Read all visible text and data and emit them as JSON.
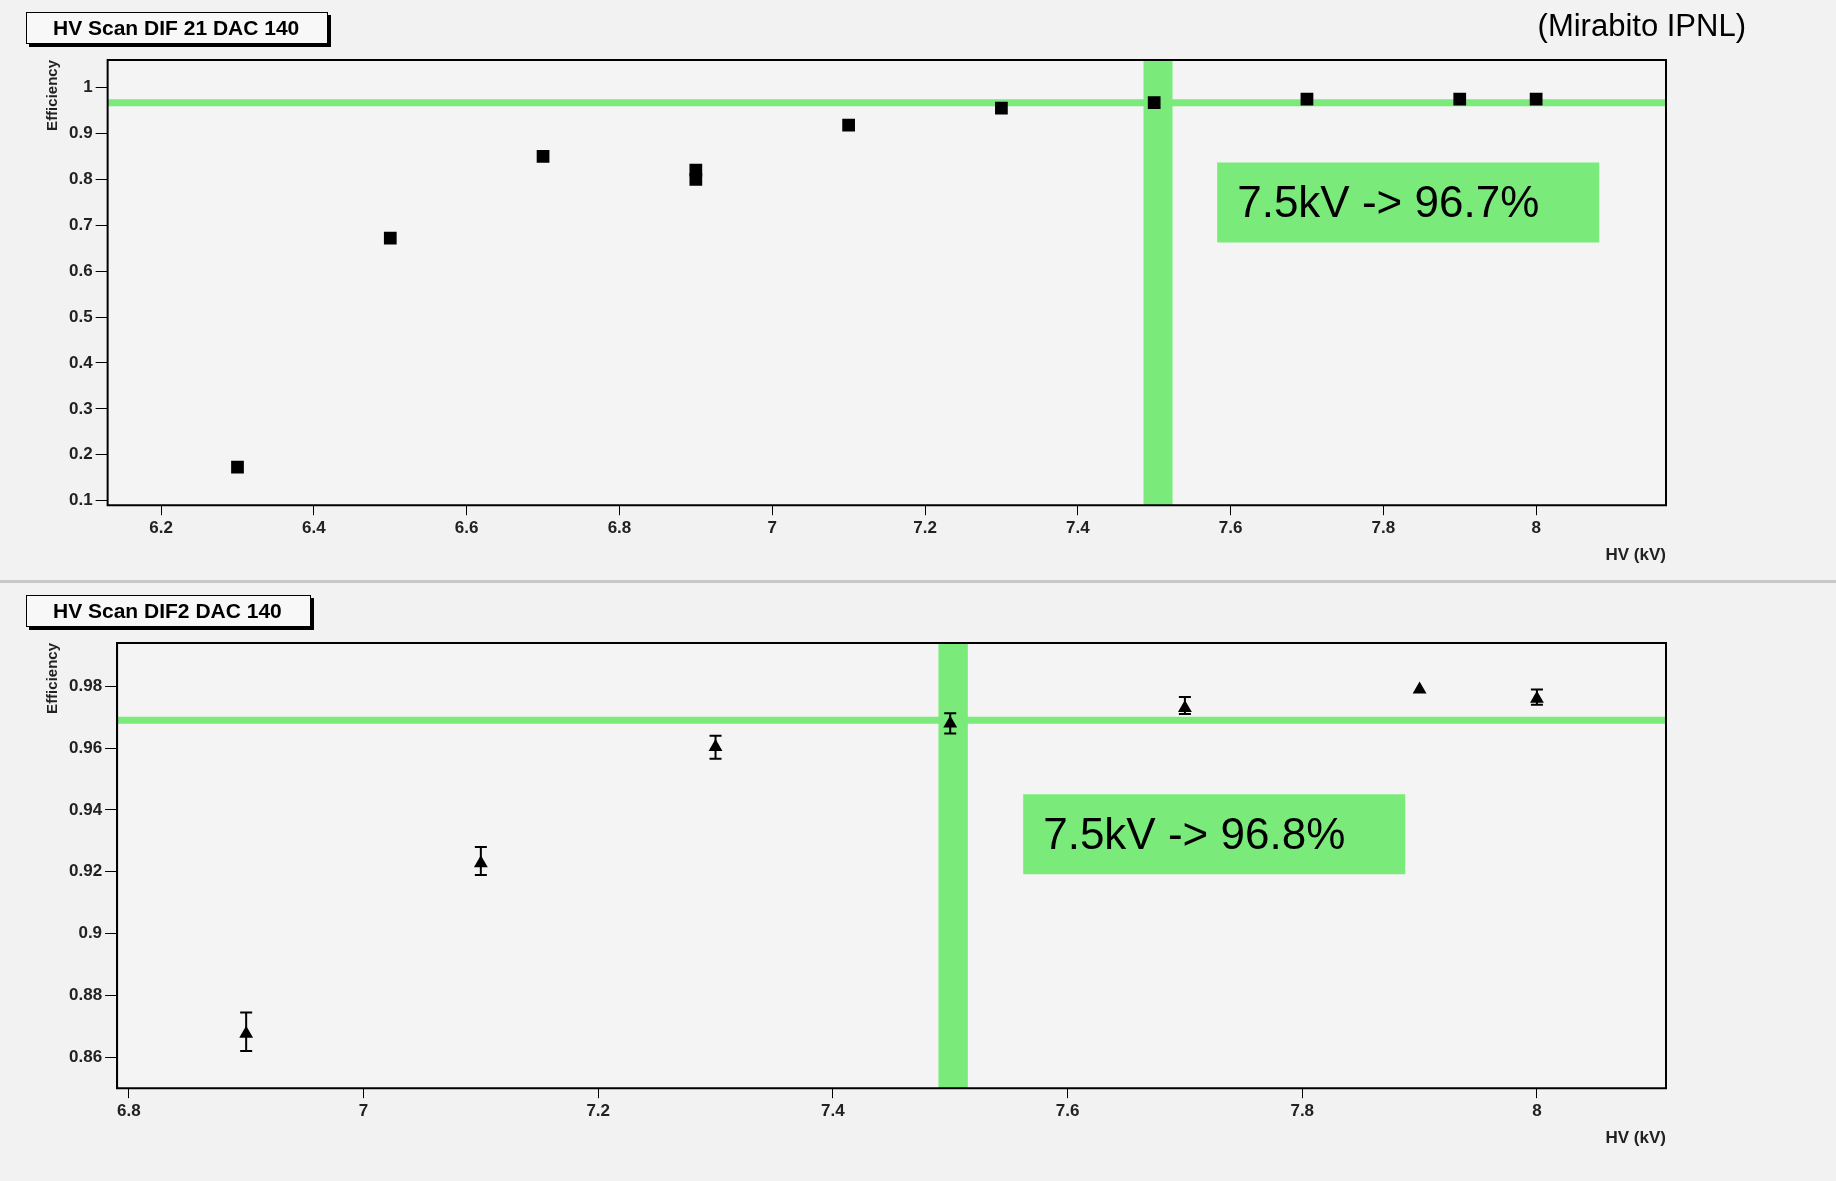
{
  "chart_data": [
    {
      "type": "scatter",
      "title": "HV Scan DIF 21 DAC 140",
      "xlabel": "HV (kV)",
      "ylabel": "Efficiency",
      "marker": "square",
      "x": [
        6.3,
        6.5,
        6.7,
        6.9,
        6.9,
        7.1,
        7.3,
        7.5,
        7.7,
        7.9,
        8.0
      ],
      "series": [
        {
          "color": "#000000",
          "values": [
            0.173,
            0.672,
            0.85,
            0.82,
            0.8,
            0.918,
            0.955,
            0.967,
            0.975,
            0.975,
            0.975
          ]
        }
      ],
      "xlim": [
        6.13,
        8.17
      ],
      "xticks": [
        6.2,
        6.4,
        6.6,
        6.8,
        7,
        7.2,
        7.4,
        7.6,
        7.8,
        8
      ],
      "ylim": [
        0.09,
        1.06
      ],
      "yticks": [
        0.1,
        0.2,
        0.3,
        0.4,
        0.5,
        0.6,
        0.7,
        0.8,
        0.9,
        1
      ],
      "ref_lines": [
        {
          "axis": "y",
          "value": 0.967,
          "color": "#7aeb7a"
        }
      ],
      "bands": [
        {
          "axis": "x",
          "from": 7.486,
          "to": 7.524,
          "color": "#7aeb7a"
        }
      ],
      "annotations": [
        "7.5kV -> 96.7%",
        "(Mirabito IPNL)"
      ]
    },
    {
      "type": "scatter",
      "title": "HV Scan DIF2 DAC 140",
      "xlabel": "HV (kV)",
      "ylabel": "Efficiency",
      "marker": "triangle",
      "x": [
        6.9,
        7.1,
        7.3,
        7.5,
        7.7,
        7.9,
        8.0
      ],
      "series": [
        {
          "color": "#000000",
          "values": [
            0.8676,
            0.9228,
            0.9604,
            0.968,
            0.973,
            0.979,
            0.976
          ],
          "errors": [
            [
              0.862,
              0.8745
            ],
            [
              0.919,
              0.928
            ],
            [
              0.9566,
              0.964
            ],
            [
              0.9647,
              0.9713
            ],
            [
              0.971,
              0.9765
            ],
            null,
            [
              0.974,
              0.979
            ]
          ]
        }
      ],
      "xlim": [
        6.79,
        8.11
      ],
      "xticks": [
        6.8,
        7,
        7.2,
        7.4,
        7.6,
        7.8,
        8
      ],
      "ylim": [
        0.85,
        0.994
      ],
      "yticks": [
        0.86,
        0.88,
        0.9,
        0.92,
        0.94,
        0.96,
        0.98
      ],
      "ref_lines": [
        {
          "axis": "y",
          "value": 0.969,
          "color": "#7aeb7a"
        }
      ],
      "bands": [
        {
          "axis": "x",
          "from": 7.49,
          "to": 7.515,
          "color": "#7aeb7a"
        }
      ],
      "annotations": [
        "7.5kV -> 96.8%"
      ]
    }
  ]
}
